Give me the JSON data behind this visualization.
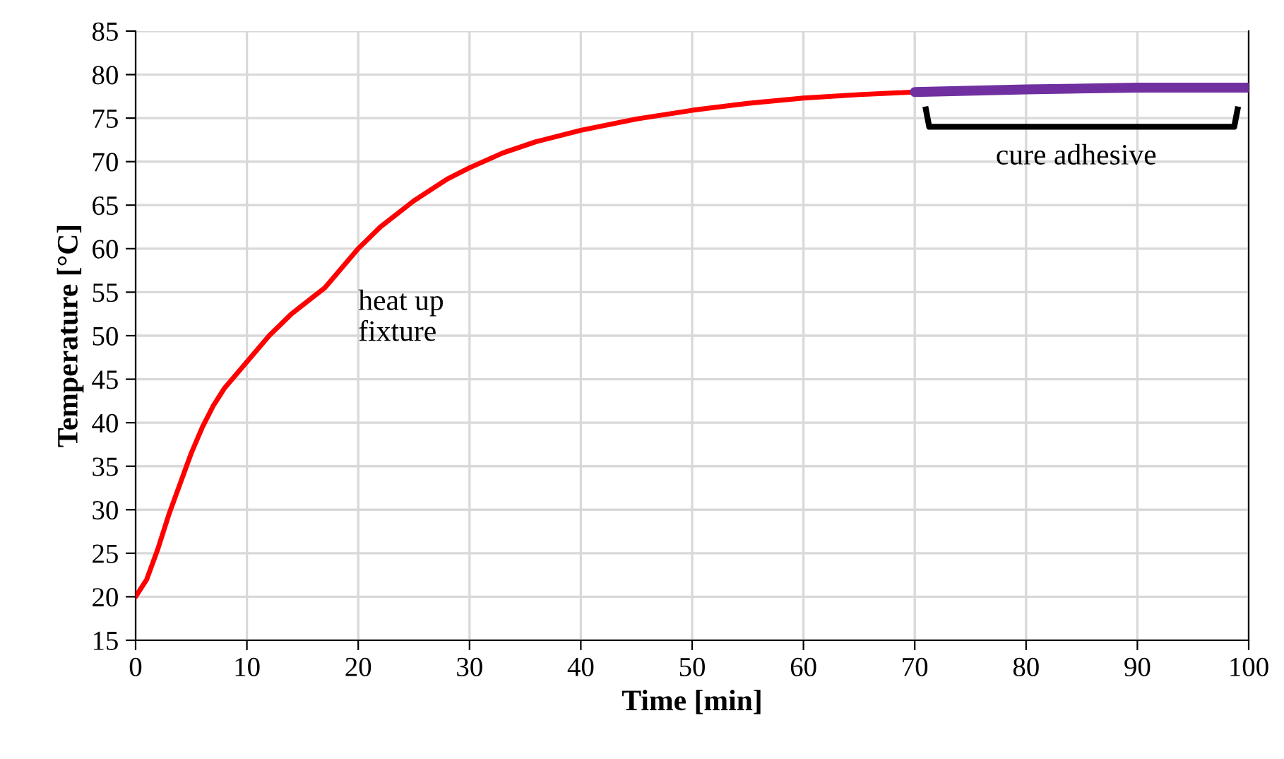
{
  "chart_data": {
    "type": "line",
    "xlabel": "Time [min]",
    "ylabel": "Temperature [°C]",
    "series": [
      {
        "color": "#ff0000",
        "x": [
          0,
          1,
          2,
          3,
          4,
          5,
          6,
          7,
          8,
          10,
          12,
          14,
          16,
          17,
          18,
          20,
          22,
          25,
          28,
          30,
          33,
          36,
          40,
          45,
          50,
          55,
          60,
          65,
          70
        ],
        "values": [
          20,
          22,
          25.5,
          29.5,
          33,
          36.5,
          39.5,
          42,
          44,
          47,
          50,
          52.5,
          54.5,
          55.5,
          57,
          60,
          62.5,
          65.5,
          68,
          69.3,
          71,
          72.3,
          73.6,
          74.9,
          75.9,
          76.7,
          77.3,
          77.7,
          78
        ]
      },
      {
        "color": "#7030a0",
        "x": [
          70,
          80,
          90,
          100
        ],
        "values": [
          78,
          78.3,
          78.5,
          78.5
        ]
      }
    ],
    "annotations": [
      "heat up\nfixture",
      "cure adhesive"
    ],
    "xlim": [
      0,
      100
    ],
    "xticks": [
      0,
      10,
      20,
      30,
      40,
      50,
      60,
      70,
      80,
      90,
      100
    ],
    "ylim": [
      15,
      85
    ],
    "yticks": [
      15,
      20,
      25,
      30,
      35,
      40,
      45,
      50,
      55,
      60,
      65,
      70,
      75,
      80,
      85
    ],
    "grid": true,
    "marker": "none",
    "line_style": "solid"
  }
}
